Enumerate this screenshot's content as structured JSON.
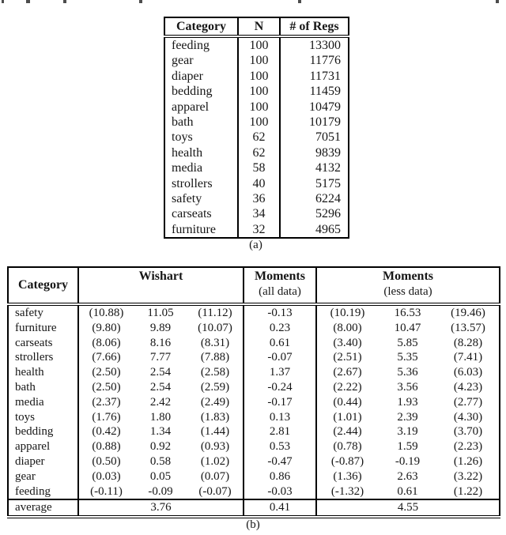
{
  "page": {
    "background": "#ffffff",
    "ink": "#161616",
    "border_color": "#000000"
  },
  "table_a": {
    "caption": "(a)",
    "columns": [
      "Category",
      "N",
      "# of Regs"
    ],
    "rows": [
      [
        "feeding",
        "100",
        "13300"
      ],
      [
        "gear",
        "100",
        "11776"
      ],
      [
        "diaper",
        "100",
        "11731"
      ],
      [
        "bedding",
        "100",
        "11459"
      ],
      [
        "apparel",
        "100",
        "10479"
      ],
      [
        "bath",
        "100",
        "10179"
      ],
      [
        "toys",
        "62",
        "7051"
      ],
      [
        "health",
        "62",
        "9839"
      ],
      [
        "media",
        "58",
        "4132"
      ],
      [
        "strollers",
        "40",
        "5175"
      ],
      [
        "safety",
        "36",
        "6224"
      ],
      [
        "carseats",
        "34",
        "5296"
      ],
      [
        "furniture",
        "32",
        "4965"
      ]
    ]
  },
  "table_b": {
    "caption": "(b)",
    "header": {
      "category": "Category",
      "wishart": "Wishart",
      "moments_all_line1": "Moments",
      "moments_all_line2": "(all data)",
      "moments_less_line1": "Moments",
      "moments_less_line2": "(less data)"
    },
    "rows": [
      {
        "category": "safety",
        "wishart": [
          "(10.88)",
          "11.05",
          "(11.12)"
        ],
        "moments_all": "-0.13",
        "moments_less": [
          "(10.19)",
          "16.53",
          "(19.46)"
        ]
      },
      {
        "category": "furniture",
        "wishart": [
          "(9.80)",
          "9.89",
          "(10.07)"
        ],
        "moments_all": "0.23",
        "moments_less": [
          "(8.00)",
          "10.47",
          "(13.57)"
        ]
      },
      {
        "category": "carseats",
        "wishart": [
          "(8.06)",
          "8.16",
          "(8.31)"
        ],
        "moments_all": "0.61",
        "moments_less": [
          "(3.40)",
          "5.85",
          "(8.28)"
        ]
      },
      {
        "category": "strollers",
        "wishart": [
          "(7.66)",
          "7.77",
          "(7.88)"
        ],
        "moments_all": "-0.07",
        "moments_less": [
          "(2.51)",
          "5.35",
          "(7.41)"
        ]
      },
      {
        "category": "health",
        "wishart": [
          "(2.50)",
          "2.54",
          "(2.58)"
        ],
        "moments_all": "1.37",
        "moments_less": [
          "(2.67)",
          "5.36",
          "(6.03)"
        ]
      },
      {
        "category": "bath",
        "wishart": [
          "(2.50)",
          "2.54",
          "(2.59)"
        ],
        "moments_all": "-0.24",
        "moments_less": [
          "(2.22)",
          "3.56",
          "(4.23)"
        ]
      },
      {
        "category": "media",
        "wishart": [
          "(2.37)",
          "2.42",
          "(2.49)"
        ],
        "moments_all": "-0.17",
        "moments_less": [
          "(0.44)",
          "1.93",
          "(2.77)"
        ]
      },
      {
        "category": "toys",
        "wishart": [
          "(1.76)",
          "1.80",
          "(1.83)"
        ],
        "moments_all": "0.13",
        "moments_less": [
          "(1.01)",
          "2.39",
          "(4.30)"
        ]
      },
      {
        "category": "bedding",
        "wishart": [
          "(0.42)",
          "1.34",
          "(1.44)"
        ],
        "moments_all": "2.81",
        "moments_less": [
          "(2.44)",
          "3.19",
          "(3.70)"
        ]
      },
      {
        "category": "apparel",
        "wishart": [
          "(0.88)",
          "0.92",
          "(0.93)"
        ],
        "moments_all": "0.53",
        "moments_less": [
          "(0.78)",
          "1.59",
          "(2.23)"
        ]
      },
      {
        "category": "diaper",
        "wishart": [
          "(0.50)",
          "0.58",
          "(1.02)"
        ],
        "moments_all": "-0.47",
        "moments_less": [
          "(-0.87)",
          "-0.19",
          "(1.26)"
        ]
      },
      {
        "category": "gear",
        "wishart": [
          "(0.03)",
          "0.05",
          "(0.07)"
        ],
        "moments_all": "0.86",
        "moments_less": [
          "(1.36)",
          "2.63",
          "(3.22)"
        ]
      },
      {
        "category": "feeding",
        "wishart": [
          "(-0.11)",
          "-0.09",
          "(-0.07)"
        ],
        "moments_all": "-0.03",
        "moments_less": [
          "(-1.32)",
          "0.61",
          "(1.22)"
        ]
      }
    ],
    "average": {
      "label": "average",
      "wishart": "3.76",
      "moments_all": "0.41",
      "moments_less": "4.55"
    }
  }
}
